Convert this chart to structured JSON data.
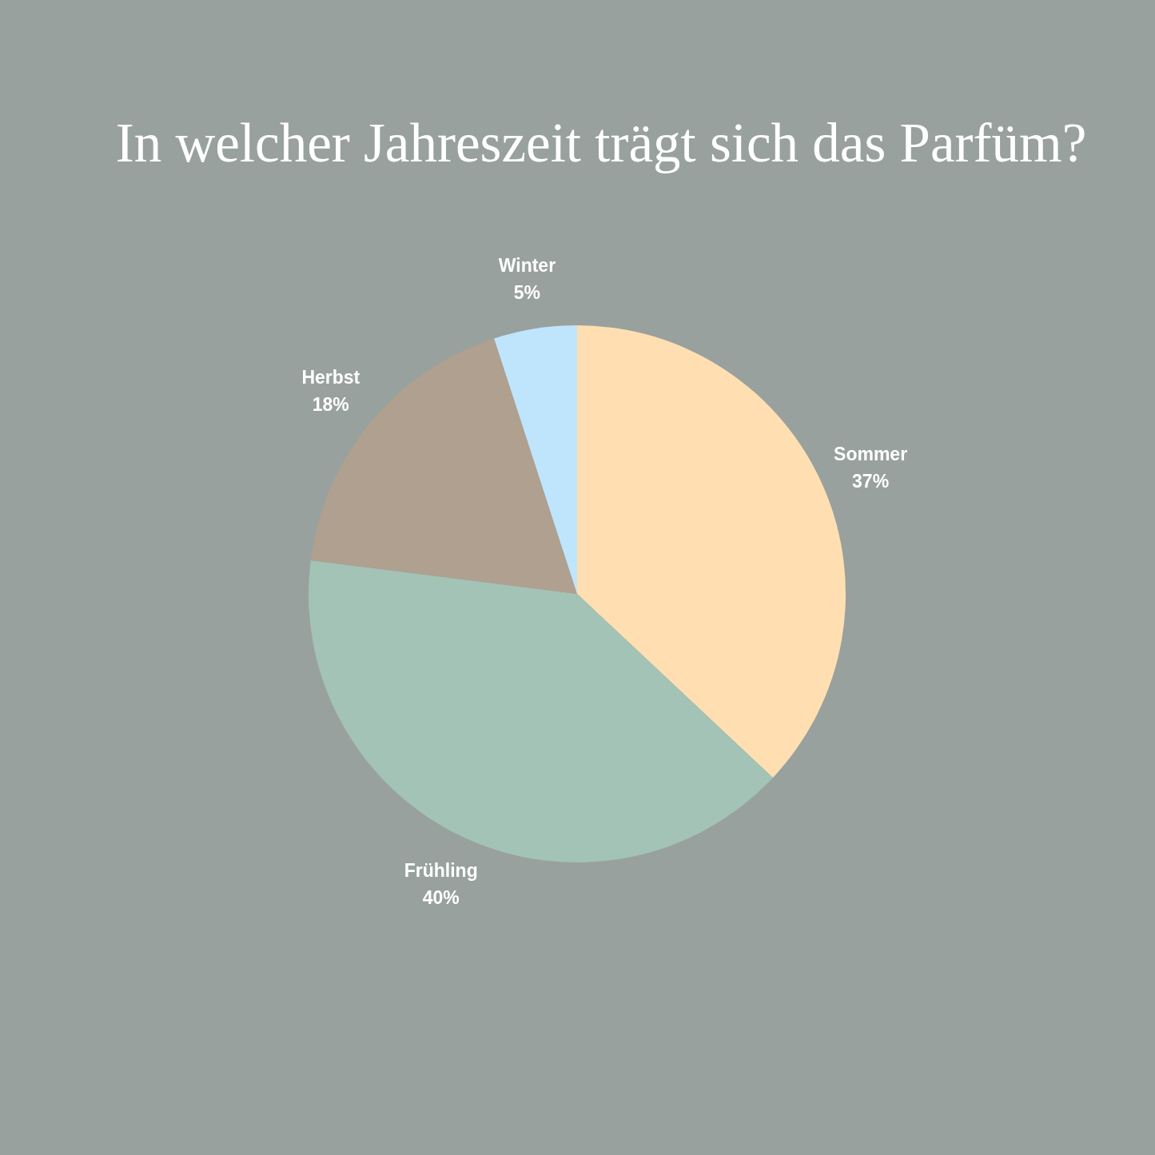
{
  "chart_data": {
    "type": "pie",
    "title": "In welcher Jahreszeit trägt sich das Parfüm?",
    "categories": [
      "Sommer",
      "Frühling",
      "Herbst",
      "Winter"
    ],
    "values": [
      37,
      40,
      18,
      5
    ],
    "colors": [
      "#ffdfb1",
      "#a2c3b5",
      "#afa08f",
      "#bfe5fd"
    ],
    "value_labels": [
      "37%",
      "40%",
      "18%",
      "5%"
    ]
  }
}
